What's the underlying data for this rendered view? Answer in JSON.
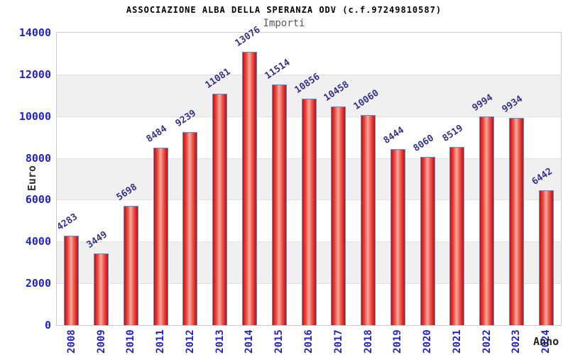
{
  "header": {
    "title": "ASSOCIAZIONE ALBA DELLA SPERANZA ODV (c.f.97249810587)",
    "subtitle": "Importi"
  },
  "chart_data": {
    "type": "bar",
    "title": "ASSOCIAZIONE ALBA DELLA SPERANZA ODV (c.f.97249810587)",
    "subtitle": "Importi",
    "xlabel": "Anno",
    "ylabel": "Euro",
    "categories": [
      "2008",
      "2009",
      "2010",
      "2011",
      "2012",
      "2013",
      "2014",
      "2015",
      "2016",
      "2017",
      "2018",
      "2019",
      "2020",
      "2021",
      "2022",
      "2023",
      "2024"
    ],
    "values": [
      4283,
      3449,
      5698,
      8484,
      9239,
      11081,
      13076,
      11514,
      10856,
      10458,
      10060,
      8444,
      8060,
      8519,
      9994,
      9934,
      6442
    ],
    "ylim": [
      0,
      14000
    ],
    "yticks": [
      0,
      2000,
      4000,
      6000,
      8000,
      10000,
      12000,
      14000
    ],
    "grid": "horizontal-alternating-bands",
    "legend": "none",
    "colors": {
      "bar_fill": "#e2211c",
      "bar_highlight": "#f3aba2",
      "bar_border": "#4a94e0",
      "tick_label": "#2222cc",
      "value_label": "#33338e",
      "band": "#f0f0f0",
      "gridline": "#e2e2e2",
      "plot_border": "#cccccc",
      "title": "#000000",
      "subtitle": "#585858",
      "axis_title": "#333333"
    }
  }
}
